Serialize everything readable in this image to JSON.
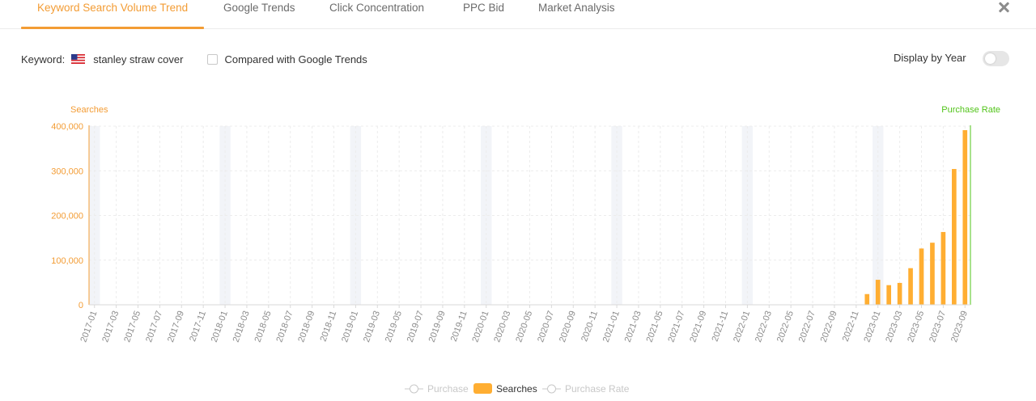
{
  "tabs": [
    {
      "label": "Keyword Search Volume Trend",
      "active": true
    },
    {
      "label": "Google Trends",
      "active": false
    },
    {
      "label": "Click Concentration",
      "active": false
    },
    {
      "label": "PPC Bid",
      "active": false
    },
    {
      "label": "Market Analysis",
      "active": false
    }
  ],
  "toolbar": {
    "keyword_label": "Keyword:",
    "flag_icon": "us-flag-icon",
    "keyword_value": "stanley straw cover",
    "compare_label": "Compared with Google Trends",
    "compare_checked": false,
    "display_by_year_label": "Display by Year",
    "display_by_year_on": false
  },
  "colors": {
    "accent": "#f39c34",
    "searches": "#ffae32",
    "purchase_rate": "#52c41a",
    "year_band": "#f2f4f8",
    "legend_inactive": "#c8c8c8"
  },
  "chart_data": {
    "type": "bar",
    "y_left_label": "Searches",
    "y_right_label": "Purchase Rate",
    "ylim": [
      0,
      400000
    ],
    "y_ticks": [
      "0",
      "100,000",
      "200,000",
      "300,000",
      "400,000"
    ],
    "x_tick_labels": [
      "2017-01",
      "2017-03",
      "2017-05",
      "2017-07",
      "2017-09",
      "2017-11",
      "2018-01",
      "2018-03",
      "2018-05",
      "2018-07",
      "2018-09",
      "2018-11",
      "2019-01",
      "2019-03",
      "2019-05",
      "2019-07",
      "2019-09",
      "2019-11",
      "2020-01",
      "2020-03",
      "2020-05",
      "2020-07",
      "2020-09",
      "2020-11",
      "2021-01",
      "2021-03",
      "2021-05",
      "2021-07",
      "2021-09",
      "2021-11",
      "2022-01",
      "2022-03",
      "2022-05",
      "2022-07",
      "2022-09",
      "2022-11",
      "2023-01",
      "2023-03",
      "2023-05",
      "2023-07",
      "2023-09"
    ],
    "first_month": "2017-01",
    "last_month": "2023-09",
    "series": [
      {
        "name": "Searches",
        "points": [
          {
            "month": "2022-12",
            "value": 24000
          },
          {
            "month": "2023-01",
            "value": 56000
          },
          {
            "month": "2023-02",
            "value": 44000
          },
          {
            "month": "2023-03",
            "value": 49000
          },
          {
            "month": "2023-04",
            "value": 82000
          },
          {
            "month": "2023-05",
            "value": 126000
          },
          {
            "month": "2023-06",
            "value": 139000
          },
          {
            "month": "2023-07",
            "value": 163000
          },
          {
            "month": "2023-08",
            "value": 304000
          },
          {
            "month": "2023-09",
            "value": 391000
          }
        ]
      }
    ],
    "legend": [
      {
        "label": "Purchase",
        "kind": "line-marker",
        "active": false
      },
      {
        "label": "Searches",
        "kind": "bar",
        "active": true
      },
      {
        "label": "Purchase Rate",
        "kind": "line-marker",
        "active": false
      }
    ],
    "grid": true,
    "legend_position": "bottom-center"
  }
}
